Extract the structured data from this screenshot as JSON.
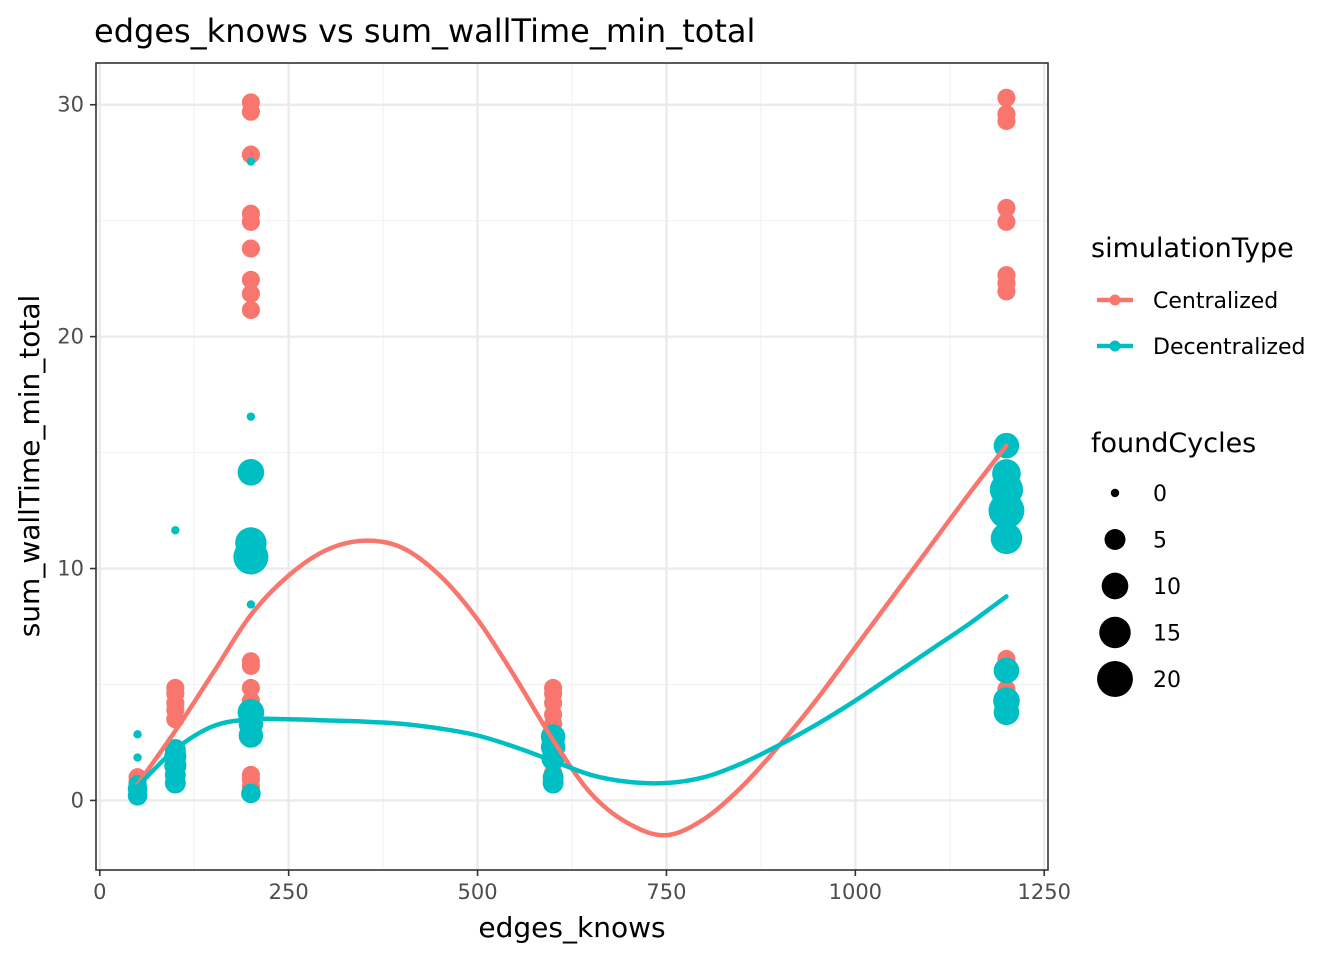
{
  "chart_data": {
    "type": "scatter",
    "title": "edges_knows  vs  sum_wallTime_min_total",
    "xlabel": "edges_knows",
    "ylabel": "sum_wallTime_min_total",
    "xlim": [
      -5,
      1255
    ],
    "ylim": [
      -3,
      31.8
    ],
    "x_ticks": [
      0,
      250,
      500,
      750,
      1000,
      1250
    ],
    "x_tick_labels": [
      "0",
      "250",
      "500",
      "750",
      "1000",
      "1250"
    ],
    "y_ticks": [
      0,
      10,
      20,
      30
    ],
    "y_tick_labels": [
      "0",
      "10",
      "20",
      "30"
    ],
    "grid": true,
    "legend_position": "right",
    "legends": {
      "color": {
        "title": "simulationType",
        "entries": [
          {
            "label": "Centralized",
            "color": "#F8766D"
          },
          {
            "label": "Decentralized",
            "color": "#00BFC4"
          }
        ]
      },
      "size": {
        "title": "foundCycles",
        "entries": [
          {
            "label": "0",
            "value": 0
          },
          {
            "label": "5",
            "value": 5
          },
          {
            "label": "10",
            "value": 10
          },
          {
            "label": "15",
            "value": 15
          },
          {
            "label": "20",
            "value": 20
          }
        ]
      }
    },
    "series": [
      {
        "name": "Centralized",
        "color": "#F8766D",
        "points": [
          {
            "x": 50,
            "y": 0.5,
            "size": 3
          },
          {
            "x": 50,
            "y": 0.8,
            "size": 3
          },
          {
            "x": 50,
            "y": 1.0,
            "size": 3
          },
          {
            "x": 100,
            "y": 0.9,
            "size": 3
          },
          {
            "x": 100,
            "y": 1.5,
            "size": 3
          },
          {
            "x": 100,
            "y": 3.5,
            "size": 3
          },
          {
            "x": 100,
            "y": 3.9,
            "size": 3
          },
          {
            "x": 100,
            "y": 4.2,
            "size": 3
          },
          {
            "x": 100,
            "y": 4.6,
            "size": 3
          },
          {
            "x": 100,
            "y": 4.85,
            "size": 3
          },
          {
            "x": 200,
            "y": 0.3,
            "size": 3
          },
          {
            "x": 200,
            "y": 0.6,
            "size": 3
          },
          {
            "x": 200,
            "y": 0.9,
            "size": 3
          },
          {
            "x": 200,
            "y": 1.1,
            "size": 3
          },
          {
            "x": 200,
            "y": 3.0,
            "size": 3
          },
          {
            "x": 200,
            "y": 3.6,
            "size": 3
          },
          {
            "x": 200,
            "y": 4.3,
            "size": 3
          },
          {
            "x": 200,
            "y": 4.85,
            "size": 3
          },
          {
            "x": 200,
            "y": 5.8,
            "size": 3
          },
          {
            "x": 200,
            "y": 6.0,
            "size": 3
          },
          {
            "x": 200,
            "y": 21.15,
            "size": 3
          },
          {
            "x": 200,
            "y": 21.85,
            "size": 3
          },
          {
            "x": 200,
            "y": 22.45,
            "size": 3
          },
          {
            "x": 200,
            "y": 23.8,
            "size": 3
          },
          {
            "x": 200,
            "y": 24.95,
            "size": 3
          },
          {
            "x": 200,
            "y": 25.3,
            "size": 3
          },
          {
            "x": 200,
            "y": 27.85,
            "size": 3
          },
          {
            "x": 200,
            "y": 29.7,
            "size": 3
          },
          {
            "x": 200,
            "y": 30.1,
            "size": 3
          },
          {
            "x": 600,
            "y": 1.2,
            "size": 3
          },
          {
            "x": 600,
            "y": 2.5,
            "size": 3
          },
          {
            "x": 600,
            "y": 3.3,
            "size": 3
          },
          {
            "x": 600,
            "y": 3.7,
            "size": 3
          },
          {
            "x": 600,
            "y": 4.2,
            "size": 3
          },
          {
            "x": 600,
            "y": 4.6,
            "size": 3
          },
          {
            "x": 600,
            "y": 4.85,
            "size": 3
          },
          {
            "x": 1200,
            "y": 4.0,
            "size": 3
          },
          {
            "x": 1200,
            "y": 4.8,
            "size": 3
          },
          {
            "x": 1200,
            "y": 5.5,
            "size": 3
          },
          {
            "x": 1200,
            "y": 6.1,
            "size": 3
          },
          {
            "x": 1200,
            "y": 21.95,
            "size": 3
          },
          {
            "x": 1200,
            "y": 22.3,
            "size": 3
          },
          {
            "x": 1200,
            "y": 22.65,
            "size": 3
          },
          {
            "x": 1200,
            "y": 24.95,
            "size": 3
          },
          {
            "x": 1200,
            "y": 25.55,
            "size": 3
          },
          {
            "x": 1200,
            "y": 29.3,
            "size": 3
          },
          {
            "x": 1200,
            "y": 29.6,
            "size": 3
          },
          {
            "x": 1200,
            "y": 30.3,
            "size": 3
          }
        ],
        "smooth": {
          "x": [
            50,
            100,
            150,
            200,
            250,
            300,
            350,
            400,
            450,
            500,
            550,
            600,
            650,
            700,
            750,
            800,
            850,
            900,
            950,
            1000,
            1050,
            1100,
            1150,
            1200
          ],
          "y": [
            0.7,
            3.0,
            5.5,
            8.0,
            9.7,
            10.8,
            11.2,
            10.9,
            9.7,
            7.8,
            5.3,
            2.6,
            0.3,
            -1.0,
            -1.5,
            -0.8,
            0.6,
            2.4,
            4.4,
            6.6,
            8.8,
            11.0,
            13.2,
            15.3
          ]
        }
      },
      {
        "name": "Decentralized",
        "color": "#00BFC4",
        "points": [
          {
            "x": 50,
            "y": 0.2,
            "size": 4
          },
          {
            "x": 50,
            "y": 0.5,
            "size": 4
          },
          {
            "x": 50,
            "y": 0.7,
            "size": 3
          },
          {
            "x": 50,
            "y": 1.85,
            "size": 0
          },
          {
            "x": 50,
            "y": 2.85,
            "size": 0
          },
          {
            "x": 100,
            "y": 0.75,
            "size": 5
          },
          {
            "x": 100,
            "y": 1.1,
            "size": 5
          },
          {
            "x": 100,
            "y": 1.5,
            "size": 6
          },
          {
            "x": 100,
            "y": 1.9,
            "size": 6
          },
          {
            "x": 100,
            "y": 2.2,
            "size": 5
          },
          {
            "x": 100,
            "y": 11.65,
            "size": 0
          },
          {
            "x": 200,
            "y": 0.3,
            "size": 4
          },
          {
            "x": 200,
            "y": 2.8,
            "size": 8
          },
          {
            "x": 200,
            "y": 3.3,
            "size": 8
          },
          {
            "x": 200,
            "y": 3.8,
            "size": 10
          },
          {
            "x": 200,
            "y": 8.45,
            "size": 0
          },
          {
            "x": 200,
            "y": 10.5,
            "size": 19
          },
          {
            "x": 200,
            "y": 11.1,
            "size": 15
          },
          {
            "x": 200,
            "y": 14.15,
            "size": 10
          },
          {
            "x": 200,
            "y": 16.55,
            "size": 0
          },
          {
            "x": 200,
            "y": 27.55,
            "size": 0
          },
          {
            "x": 600,
            "y": 0.75,
            "size": 5
          },
          {
            "x": 600,
            "y": 1.0,
            "size": 5
          },
          {
            "x": 600,
            "y": 1.8,
            "size": 7
          },
          {
            "x": 600,
            "y": 2.3,
            "size": 8
          },
          {
            "x": 600,
            "y": 2.75,
            "size": 8
          },
          {
            "x": 1200,
            "y": 3.8,
            "size": 9
          },
          {
            "x": 1200,
            "y": 4.3,
            "size": 10
          },
          {
            "x": 1200,
            "y": 5.6,
            "size": 9
          },
          {
            "x": 1200,
            "y": 11.3,
            "size": 15
          },
          {
            "x": 1200,
            "y": 12.5,
            "size": 20
          },
          {
            "x": 1200,
            "y": 13.4,
            "size": 17
          },
          {
            "x": 1200,
            "y": 14.1,
            "size": 12
          },
          {
            "x": 1200,
            "y": 15.3,
            "size": 9
          }
        ],
        "smooth": {
          "x": [
            50,
            100,
            150,
            200,
            250,
            300,
            350,
            400,
            450,
            500,
            550,
            600,
            650,
            700,
            750,
            800,
            850,
            900,
            950,
            1000,
            1050,
            1100,
            1150,
            1200
          ],
          "y": [
            0.6,
            2.2,
            3.2,
            3.5,
            3.5,
            3.45,
            3.4,
            3.3,
            3.1,
            2.8,
            2.3,
            1.7,
            1.1,
            0.8,
            0.75,
            1.0,
            1.6,
            2.4,
            3.3,
            4.3,
            5.4,
            6.5,
            7.6,
            8.8
          ]
        }
      }
    ]
  }
}
